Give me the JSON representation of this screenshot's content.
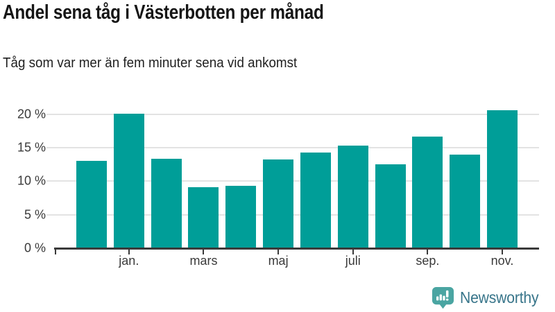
{
  "header": {
    "title": "Andel sena tåg i Västerbotten per månad",
    "subtitle": "Tåg som var mer än fem minuter sena vid ankomst"
  },
  "chart_data": {
    "type": "bar",
    "title": "Andel sena tåg i Västerbotten per månad",
    "subtitle": "Tåg som var mer än fem minuter sena vid ankomst",
    "values": [
      13.0,
      20.1,
      13.3,
      9.1,
      9.3,
      13.2,
      14.3,
      15.3,
      12.5,
      16.6,
      14.0,
      20.6
    ],
    "unit": "%",
    "y_ticks": [
      "0 %",
      "5 %",
      "10 %",
      "15 %",
      "20 %"
    ],
    "y_tick_values": [
      0,
      5,
      10,
      15,
      20
    ],
    "ylim": [
      0,
      21.5
    ],
    "x_tick_labels": [
      "jan.",
      "mars",
      "maj",
      "juli",
      "sep.",
      "nov."
    ],
    "x_tick_bar_indices": [
      1,
      3,
      5,
      7,
      9,
      11
    ],
    "bar_color": "#009E98",
    "grid_color": "#e3e3e3",
    "axis_color": "#3a3a3a",
    "gridlines": "on",
    "legend": "none"
  },
  "footer": {
    "brand": "Newsworthy",
    "logo_icon": "newsworthy-speech-bubble-bar-chart-icon",
    "brand_color": "#38758A",
    "icon_color": "#4AA5A2"
  }
}
